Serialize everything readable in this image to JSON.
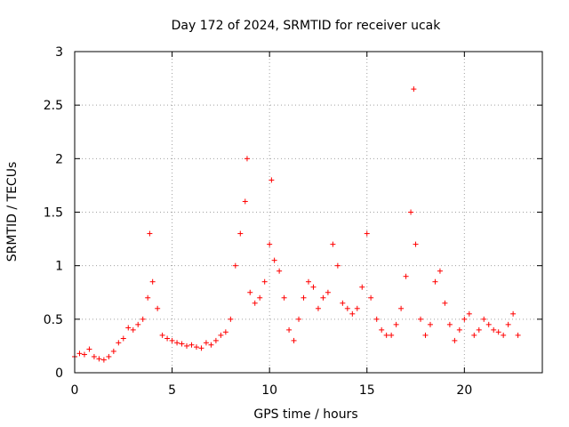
{
  "chart_data": {
    "type": "scatter",
    "title": "Day 172 of 2024, SRMTID for receiver ucak",
    "xlabel": "GPS time / hours",
    "ylabel": "SRMTID / TECUs",
    "xlim": [
      0,
      24
    ],
    "ylim": [
      0,
      3
    ],
    "xticks": [
      0,
      5,
      10,
      15,
      20
    ],
    "yticks": [
      0,
      0.5,
      1,
      1.5,
      2,
      2.5,
      3
    ],
    "xtick_labels": [
      "0",
      "5",
      "10",
      "15",
      "20"
    ],
    "ytick_labels": [
      "0",
      "0.5",
      "1",
      "1.5",
      "2",
      "2.5",
      "3"
    ],
    "grid": true,
    "marker": "+",
    "color": "#ff0000",
    "series": [
      {
        "name": "SRMTID",
        "x": [
          0.0,
          0.25,
          0.5,
          0.75,
          1.0,
          1.25,
          1.5,
          1.75,
          2.0,
          2.25,
          2.5,
          2.75,
          3.0,
          3.25,
          3.5,
          3.75,
          3.85,
          4.0,
          4.25,
          4.5,
          4.75,
          5.0,
          5.25,
          5.5,
          5.75,
          6.0,
          6.25,
          6.5,
          6.75,
          7.0,
          7.25,
          7.5,
          7.75,
          8.0,
          8.25,
          8.5,
          8.75,
          8.85,
          9.0,
          9.25,
          9.5,
          9.75,
          10.0,
          10.1,
          10.25,
          10.5,
          10.75,
          11.0,
          11.25,
          11.5,
          11.75,
          12.0,
          12.25,
          12.5,
          12.75,
          13.0,
          13.25,
          13.5,
          13.75,
          14.0,
          14.25,
          14.5,
          14.75,
          15.0,
          15.2,
          15.5,
          15.75,
          16.0,
          16.25,
          16.5,
          16.75,
          17.0,
          17.25,
          17.4,
          17.5,
          17.75,
          18.0,
          18.25,
          18.5,
          18.75,
          19.0,
          19.25,
          19.5,
          19.75,
          20.0,
          20.25,
          20.5,
          20.75,
          21.0,
          21.25,
          21.5,
          21.75,
          22.0,
          22.25,
          22.5,
          22.75
        ],
        "y": [
          0.15,
          0.18,
          0.17,
          0.22,
          0.15,
          0.13,
          0.12,
          0.15,
          0.2,
          0.28,
          0.32,
          0.42,
          0.4,
          0.45,
          0.5,
          0.7,
          1.3,
          0.85,
          0.6,
          0.35,
          0.32,
          0.3,
          0.28,
          0.27,
          0.25,
          0.26,
          0.24,
          0.23,
          0.28,
          0.26,
          0.3,
          0.35,
          0.38,
          0.5,
          1.0,
          1.3,
          1.6,
          2.0,
          0.75,
          0.65,
          0.7,
          0.85,
          1.2,
          1.8,
          1.05,
          0.95,
          0.7,
          0.4,
          0.3,
          0.5,
          0.7,
          0.85,
          0.8,
          0.6,
          0.7,
          0.75,
          1.2,
          1.0,
          0.65,
          0.6,
          0.55,
          0.6,
          0.8,
          1.3,
          0.7,
          0.5,
          0.4,
          0.35,
          0.35,
          0.45,
          0.6,
          0.9,
          1.5,
          2.65,
          1.2,
          0.5,
          0.35,
          0.45,
          0.85,
          0.95,
          0.65,
          0.45,
          0.3,
          0.4,
          0.5,
          0.55,
          0.35,
          0.4,
          0.5,
          0.45,
          0.4,
          0.38,
          0.35,
          0.45,
          0.55,
          0.35
        ]
      }
    ]
  }
}
